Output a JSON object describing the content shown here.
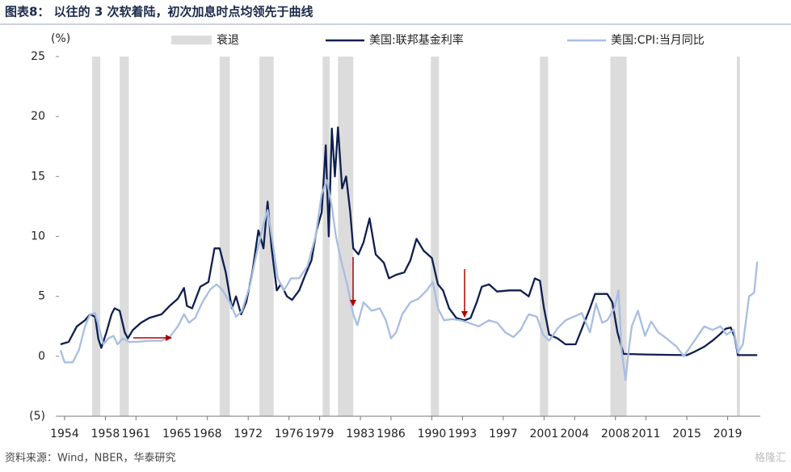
{
  "chart_data": {
    "type": "line",
    "title": "图表8：  以往的 3 次软着陆，初次加息时点均领先于曲线",
    "y_unit": "(%)",
    "source": "资料来源：Wind，NBER，华泰研究",
    "watermark": "格隆汇",
    "xlim": [
      1953.45,
      2022.2
    ],
    "xticks": [
      1954,
      1958,
      1961,
      1965,
      1968,
      1972,
      1976,
      1979,
      1983,
      1986,
      1990,
      1993,
      1997,
      2001,
      2004,
      2008,
      2011,
      2015,
      2019
    ],
    "ylim": [
      -5,
      25
    ],
    "yticks": [
      25,
      20,
      15,
      10,
      5,
      0,
      {
        "value": -5,
        "label": "(5)"
      }
    ],
    "grid": false,
    "recessions": {
      "name": "衰退",
      "color": "#dcdcdc",
      "periods": [
        [
          1956.7,
          1957.5
        ],
        [
          1959.4,
          1960.3
        ],
        [
          1969.2,
          1970.2
        ],
        [
          1973.1,
          1974.5
        ],
        [
          1979.3,
          1980.0
        ],
        [
          1980.8,
          1982.3
        ],
        [
          1989.9,
          1990.7
        ],
        [
          2000.6,
          2001.4
        ],
        [
          2007.5,
          2009.1
        ],
        [
          2019.9,
          2020.2
        ]
      ]
    },
    "series": [
      {
        "name": "美国:联邦基金利率",
        "color": "#0e1f4f",
        "x": [
          1953.6,
          1954.4,
          1955.2,
          1956.0,
          1956.5,
          1957.0,
          1957.3,
          1957.6,
          1958.1,
          1958.6,
          1958.9,
          1959.4,
          1959.9,
          1960.2,
          1960.7,
          1961.5,
          1962.3,
          1963.5,
          1964.3,
          1965.1,
          1965.7,
          1966.0,
          1966.5,
          1967.3,
          1968.1,
          1968.7,
          1969.2,
          1969.8,
          1970.4,
          1970.8,
          1971.3,
          1971.8,
          1972.4,
          1973.0,
          1973.5,
          1973.9,
          1974.3,
          1974.8,
          1975.2,
          1975.8,
          1976.3,
          1977.0,
          1977.6,
          1978.2,
          1978.7,
          1979.2,
          1979.6,
          1979.9,
          1980.2,
          1980.5,
          1980.8,
          1981.2,
          1981.6,
          1982.0,
          1982.3,
          1982.8,
          1983.3,
          1983.9,
          1984.5,
          1985.3,
          1985.8,
          1986.5,
          1987.3,
          1987.9,
          1988.5,
          1989.2,
          1990.0,
          1990.6,
          1991.1,
          1991.7,
          1992.4,
          1993.2,
          1993.8,
          1994.4,
          1994.9,
          1995.6,
          1996.4,
          1997.6,
          1998.7,
          1999.5,
          2000.1,
          2000.6,
          2001.0,
          2001.5,
          2002.3,
          2003.1,
          2004.1,
          2004.8,
          2005.5,
          2006.0,
          2007.2,
          2007.7,
          2008.2,
          2008.8,
          2011.0,
          2013.4,
          2015.0,
          2015.8,
          2016.7,
          2017.5,
          2018.2,
          2018.8,
          2019.3,
          2019.7,
          2020.0,
          2021.9
        ],
        "values": [
          1.0,
          1.2,
          2.5,
          3.0,
          3.5,
          3.3,
          1.5,
          0.7,
          2.0,
          3.5,
          4.0,
          3.8,
          2.0,
          1.5,
          2.2,
          2.8,
          3.2,
          3.5,
          4.2,
          4.8,
          5.7,
          4.2,
          4.0,
          5.8,
          6.2,
          9.0,
          9.0,
          7.0,
          4.0,
          5.0,
          3.5,
          4.5,
          7.0,
          10.5,
          9.0,
          12.9,
          9.0,
          5.5,
          6.0,
          5.0,
          4.7,
          5.5,
          6.8,
          8.0,
          10.5,
          12.0,
          17.6,
          10.0,
          19.0,
          15.0,
          19.1,
          14.0,
          15.0,
          12.0,
          9.0,
          8.5,
          9.5,
          11.5,
          8.5,
          7.8,
          6.5,
          6.8,
          7.0,
          8.0,
          9.8,
          8.8,
          8.2,
          6.0,
          5.5,
          4.0,
          3.2,
          3.0,
          3.2,
          4.5,
          5.8,
          6.0,
          5.4,
          5.5,
          5.5,
          5.0,
          6.5,
          6.3,
          4.0,
          1.8,
          1.5,
          1.0,
          1.0,
          2.5,
          4.0,
          5.2,
          5.2,
          4.5,
          2.0,
          0.2,
          0.15,
          0.12,
          0.1,
          0.4,
          0.8,
          1.3,
          1.8,
          2.3,
          2.4,
          1.6,
          0.1,
          0.1
        ]
      },
      {
        "name": "美国:CPI:当月同比",
        "color": "#a8bde2",
        "x": [
          1953.6,
          1954.0,
          1954.8,
          1955.4,
          1956.0,
          1956.5,
          1957.0,
          1957.5,
          1957.8,
          1958.3,
          1958.8,
          1959.2,
          1959.7,
          1960.3,
          1961.1,
          1962.3,
          1963.5,
          1964.3,
          1965.1,
          1965.7,
          1966.2,
          1966.8,
          1967.5,
          1968.3,
          1968.9,
          1969.5,
          1970.2,
          1970.8,
          1971.4,
          1972.2,
          1972.8,
          1973.5,
          1973.9,
          1974.4,
          1974.9,
          1975.5,
          1976.2,
          1977.0,
          1977.8,
          1978.6,
          1979.2,
          1979.7,
          1980.2,
          1980.6,
          1981.1,
          1981.7,
          1982.3,
          1982.7,
          1983.3,
          1984.1,
          1984.9,
          1985.5,
          1986.0,
          1986.5,
          1987.1,
          1987.9,
          1988.7,
          1989.5,
          1990.1,
          1990.6,
          1991.2,
          1992.0,
          1992.8,
          1993.6,
          1994.6,
          1995.6,
          1996.4,
          1997.2,
          1998.0,
          1998.7,
          1999.5,
          2000.3,
          2000.9,
          2001.5,
          2002.3,
          2003.1,
          2003.9,
          2004.7,
          2005.5,
          2006.1,
          2006.7,
          2007.2,
          2007.9,
          2008.3,
          2008.6,
          2009.0,
          2009.3,
          2009.6,
          2010.2,
          2010.9,
          2011.5,
          2012.2,
          2013.0,
          2014.0,
          2014.7,
          2015.1,
          2015.9,
          2016.7,
          2017.5,
          2018.3,
          2018.9,
          2019.6,
          2020.0,
          2020.5,
          2021.1,
          2021.6,
          2021.9
        ],
        "values": [
          0.5,
          -0.5,
          -0.5,
          0.5,
          2.5,
          3.5,
          3.6,
          2.0,
          1.0,
          1.5,
          1.7,
          1.0,
          1.5,
          1.2,
          1.2,
          1.3,
          1.3,
          1.6,
          2.5,
          3.5,
          2.8,
          3.2,
          4.5,
          5.6,
          6.0,
          5.5,
          4.5,
          3.3,
          3.8,
          6.0,
          8.5,
          11.0,
          12.2,
          9.5,
          6.5,
          5.5,
          6.5,
          6.5,
          7.5,
          10.0,
          13.5,
          14.7,
          12.5,
          10.0,
          8.0,
          6.0,
          3.5,
          2.6,
          4.5,
          3.8,
          4.0,
          3.0,
          1.5,
          2.0,
          3.5,
          4.5,
          4.8,
          5.5,
          6.2,
          4.0,
          3.0,
          3.1,
          3.0,
          2.8,
          2.5,
          3.0,
          2.8,
          2.0,
          1.6,
          2.2,
          3.5,
          3.3,
          1.8,
          1.3,
          2.3,
          3.0,
          3.3,
          3.6,
          2.0,
          4.4,
          2.8,
          3.0,
          4.0,
          5.5,
          0.5,
          -2.0,
          0.5,
          2.5,
          3.8,
          1.7,
          2.9,
          2.0,
          1.5,
          0.8,
          0.0,
          0.5,
          1.5,
          2.5,
          2.2,
          2.5,
          1.8,
          2.2,
          0.3,
          1.0,
          5.0,
          5.3,
          7.9
        ]
      }
    ]
  }
}
